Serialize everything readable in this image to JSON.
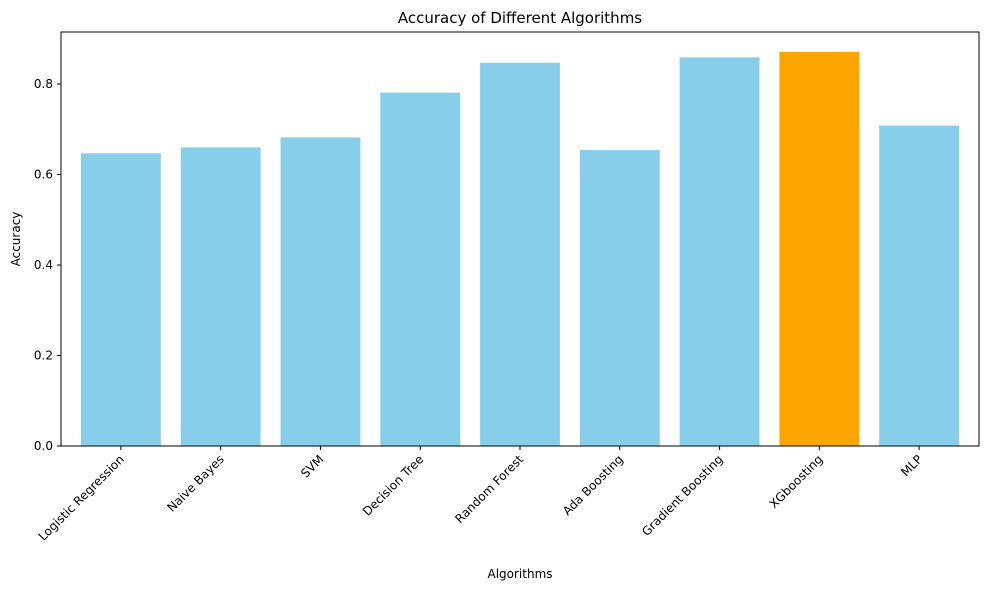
{
  "chart_data": {
    "type": "bar",
    "title": "Accuracy of Different Algorithms",
    "xlabel": "Algorithms",
    "ylabel": "Accuracy",
    "categories": [
      "Logistic Regression",
      "Naive Bayes",
      "SVM",
      "Decision Tree",
      "Random Forest",
      "Ada Boosting",
      "Gradient Boosting",
      "XGboosting",
      "MLP"
    ],
    "values": [
      0.647,
      0.66,
      0.682,
      0.781,
      0.847,
      0.654,
      0.859,
      0.871,
      0.708
    ],
    "bar_colors": [
      "#87ceeb",
      "#87ceeb",
      "#87ceeb",
      "#87ceeb",
      "#87ceeb",
      "#87ceeb",
      "#87ceeb",
      "#ffa500",
      "#87ceeb"
    ],
    "highlight": "XGboosting",
    "ylim": [
      0,
      0.915
    ],
    "yticks": [
      "0.0",
      "0.2",
      "0.4",
      "0.6",
      "0.8"
    ],
    "ytick_values": [
      0,
      0.2,
      0.4,
      0.6,
      0.8
    ],
    "grid": false,
    "legend": "none"
  }
}
